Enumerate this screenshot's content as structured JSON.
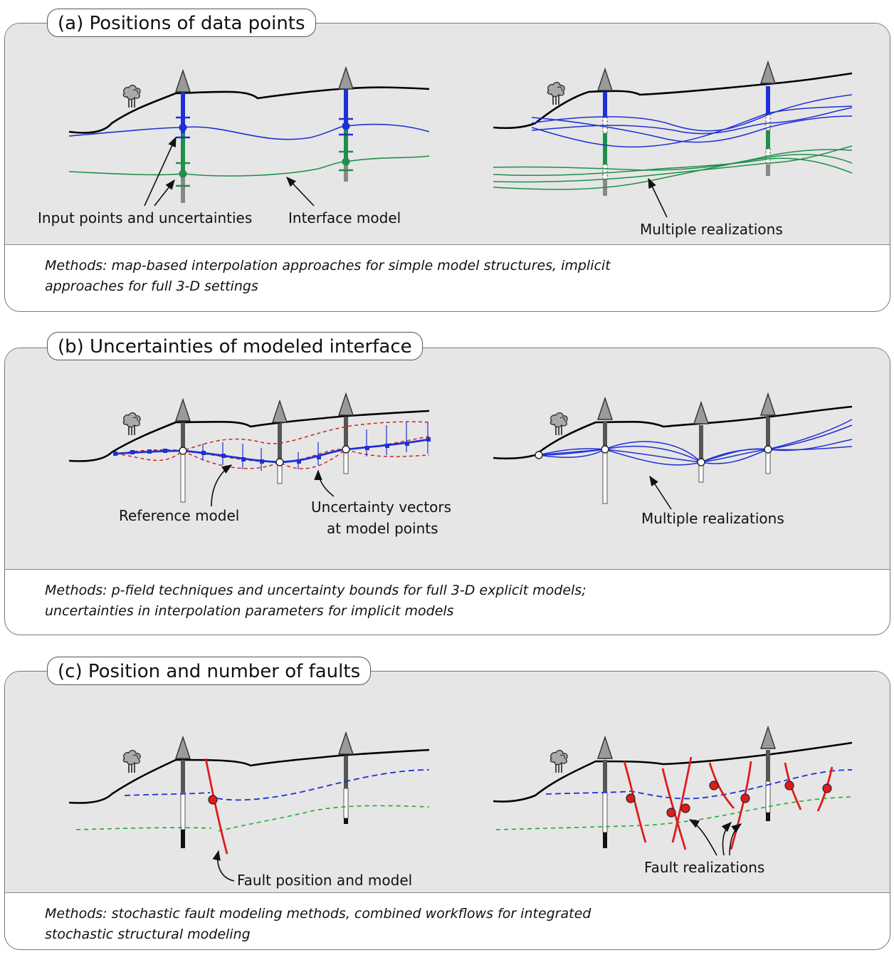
{
  "panels": [
    {
      "title": "(a) Positions of data points",
      "labels": {
        "input_points": "Input points and uncertainties",
        "interface_model": "Interface model",
        "multiple_realizations": "Multiple realizations"
      },
      "methods_line1": "Methods: map-based interpolation approaches for simple model structures, implicit",
      "methods_line2": "approaches for full 3-D settings"
    },
    {
      "title": "(b) Uncertainties of modeled interface",
      "labels": {
        "reference_model": "Reference model",
        "uncertainty_vectors_line1": "Uncertainty vectors",
        "uncertainty_vectors_line2": "at model points",
        "multiple_realizations": "Multiple realizations"
      },
      "methods_line1": "Methods: p-field techniques and uncertainty bounds for full 3-D explicit models;",
      "methods_line2": "uncertainties in interpolation parameters for implicit models"
    },
    {
      "title": "(c) Position and number of faults",
      "labels": {
        "fault_position": "Fault position and model",
        "fault_realizations": "Fault realizations"
      },
      "methods_line1": "Methods: stochastic fault modeling methods, combined workflows for integrated",
      "methods_line2": "stochastic structural modeling"
    }
  ],
  "colors": {
    "interface_blue": "#1f2fd6",
    "interface_green": "#1f8f4a",
    "fault_red": "#e01b1b",
    "ground": "#000000",
    "panel_fill": "#e6e6e6"
  }
}
